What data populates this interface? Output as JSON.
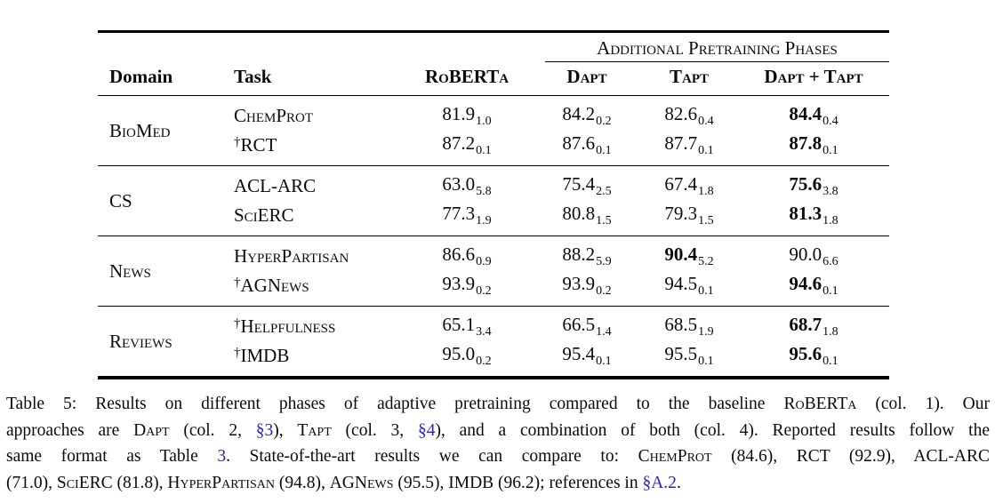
{
  "page": {
    "background": "#ffffff",
    "text_color": "#0a0a0a",
    "link_color": "#2626b8"
  },
  "table": {
    "spanning_header": "Additional Pretraining Phases",
    "columns": [
      {
        "label": "Domain",
        "sc": false
      },
      {
        "label": "Task",
        "sc": false
      },
      {
        "label": "RoBERTa",
        "sc": true
      },
      {
        "label": "Dapt",
        "sc": true
      },
      {
        "label": "Tapt",
        "sc": true
      },
      {
        "label": "Dapt + Tapt",
        "sc": true
      }
    ],
    "groups": [
      {
        "domain": "BioMed",
        "rows": [
          {
            "task": "ChemProt",
            "dagger": false,
            "cells": [
              {
                "v": "81.9",
                "s": "1.0",
                "b": false
              },
              {
                "v": "84.2",
                "s": "0.2",
                "b": false
              },
              {
                "v": "82.6",
                "s": "0.4",
                "b": false
              },
              {
                "v": "84.4",
                "s": "0.4",
                "b": true
              }
            ]
          },
          {
            "task": "RCT",
            "dagger": true,
            "cells": [
              {
                "v": "87.2",
                "s": "0.1",
                "b": false
              },
              {
                "v": "87.6",
                "s": "0.1",
                "b": false
              },
              {
                "v": "87.7",
                "s": "0.1",
                "b": false
              },
              {
                "v": "87.8",
                "s": "0.1",
                "b": true
              }
            ]
          }
        ]
      },
      {
        "domain": "CS",
        "rows": [
          {
            "task": "ACL-ARC",
            "dagger": false,
            "cells": [
              {
                "v": "63.0",
                "s": "5.8",
                "b": false
              },
              {
                "v": "75.4",
                "s": "2.5",
                "b": false
              },
              {
                "v": "67.4",
                "s": "1.8",
                "b": false
              },
              {
                "v": "75.6",
                "s": "3.8",
                "b": true
              }
            ]
          },
          {
            "task": "SciERC",
            "dagger": false,
            "cells": [
              {
                "v": "77.3",
                "s": "1.9",
                "b": false
              },
              {
                "v": "80.8",
                "s": "1.5",
                "b": false
              },
              {
                "v": "79.3",
                "s": "1.5",
                "b": false
              },
              {
                "v": "81.3",
                "s": "1.8",
                "b": true
              }
            ]
          }
        ]
      },
      {
        "domain": "News",
        "rows": [
          {
            "task": "HyperPartisan",
            "dagger": false,
            "cells": [
              {
                "v": "86.6",
                "s": "0.9",
                "b": false
              },
              {
                "v": "88.2",
                "s": "5.9",
                "b": false
              },
              {
                "v": "90.4",
                "s": "5.2",
                "b": true
              },
              {
                "v": "90.0",
                "s": "6.6",
                "b": false
              }
            ]
          },
          {
            "task": "AGNews",
            "dagger": true,
            "cells": [
              {
                "v": "93.9",
                "s": "0.2",
                "b": false
              },
              {
                "v": "93.9",
                "s": "0.2",
                "b": false
              },
              {
                "v": "94.5",
                "s": "0.1",
                "b": false
              },
              {
                "v": "94.6",
                "s": "0.1",
                "b": true
              }
            ]
          }
        ]
      },
      {
        "domain": "Reviews",
        "rows": [
          {
            "task": "Helpfulness",
            "dagger": true,
            "cells": [
              {
                "v": "65.1",
                "s": "3.4",
                "b": false
              },
              {
                "v": "66.5",
                "s": "1.4",
                "b": false
              },
              {
                "v": "68.5",
                "s": "1.9",
                "b": false
              },
              {
                "v": "68.7",
                "s": "1.8",
                "b": true
              }
            ]
          },
          {
            "task": "IMDB",
            "dagger": true,
            "cells": [
              {
                "v": "95.0",
                "s": "0.2",
                "b": false
              },
              {
                "v": "95.4",
                "s": "0.1",
                "b": false
              },
              {
                "v": "95.5",
                "s": "0.1",
                "b": false
              },
              {
                "v": "95.6",
                "s": "0.1",
                "b": true
              }
            ]
          }
        ]
      }
    ]
  },
  "caption": {
    "lines": [
      [
        {
          "t": "Table 5: Results on different phases of adaptive pretraining compared to the baseline "
        },
        {
          "t": "RoBERTa",
          "sc": true
        },
        {
          "t": " (col. 1). Our"
        }
      ],
      [
        {
          "t": "approaches are "
        },
        {
          "t": "Dapt",
          "sc": true
        },
        {
          "t": " (col. 2, "
        },
        {
          "t": "§3",
          "link": true
        },
        {
          "t": "), "
        },
        {
          "t": "Tapt",
          "sc": true
        },
        {
          "t": " (col. 3, "
        },
        {
          "t": "§4",
          "link": true
        },
        {
          "t": "), and a combination of both (col. 4). Reported results follow the"
        }
      ],
      [
        {
          "t": "same format as Table "
        },
        {
          "t": "3",
          "link": true
        },
        {
          "t": ". State-of-the-art results we can compare to: "
        },
        {
          "t": "ChemProt",
          "sc": true
        },
        {
          "t": " (84.6), RCT (92.9), ACL-ARC"
        }
      ],
      [
        {
          "t": "(71.0), "
        },
        {
          "t": "SciERC",
          "sc": true
        },
        {
          "t": " (81.8), "
        },
        {
          "t": "HyperPartisan",
          "sc": true
        },
        {
          "t": " (94.8), "
        },
        {
          "t": "AGNews",
          "sc": true
        },
        {
          "t": " (95.5), IMDB (96.2); references in "
        },
        {
          "t": "§A.2",
          "link": true
        },
        {
          "t": "."
        }
      ]
    ]
  }
}
